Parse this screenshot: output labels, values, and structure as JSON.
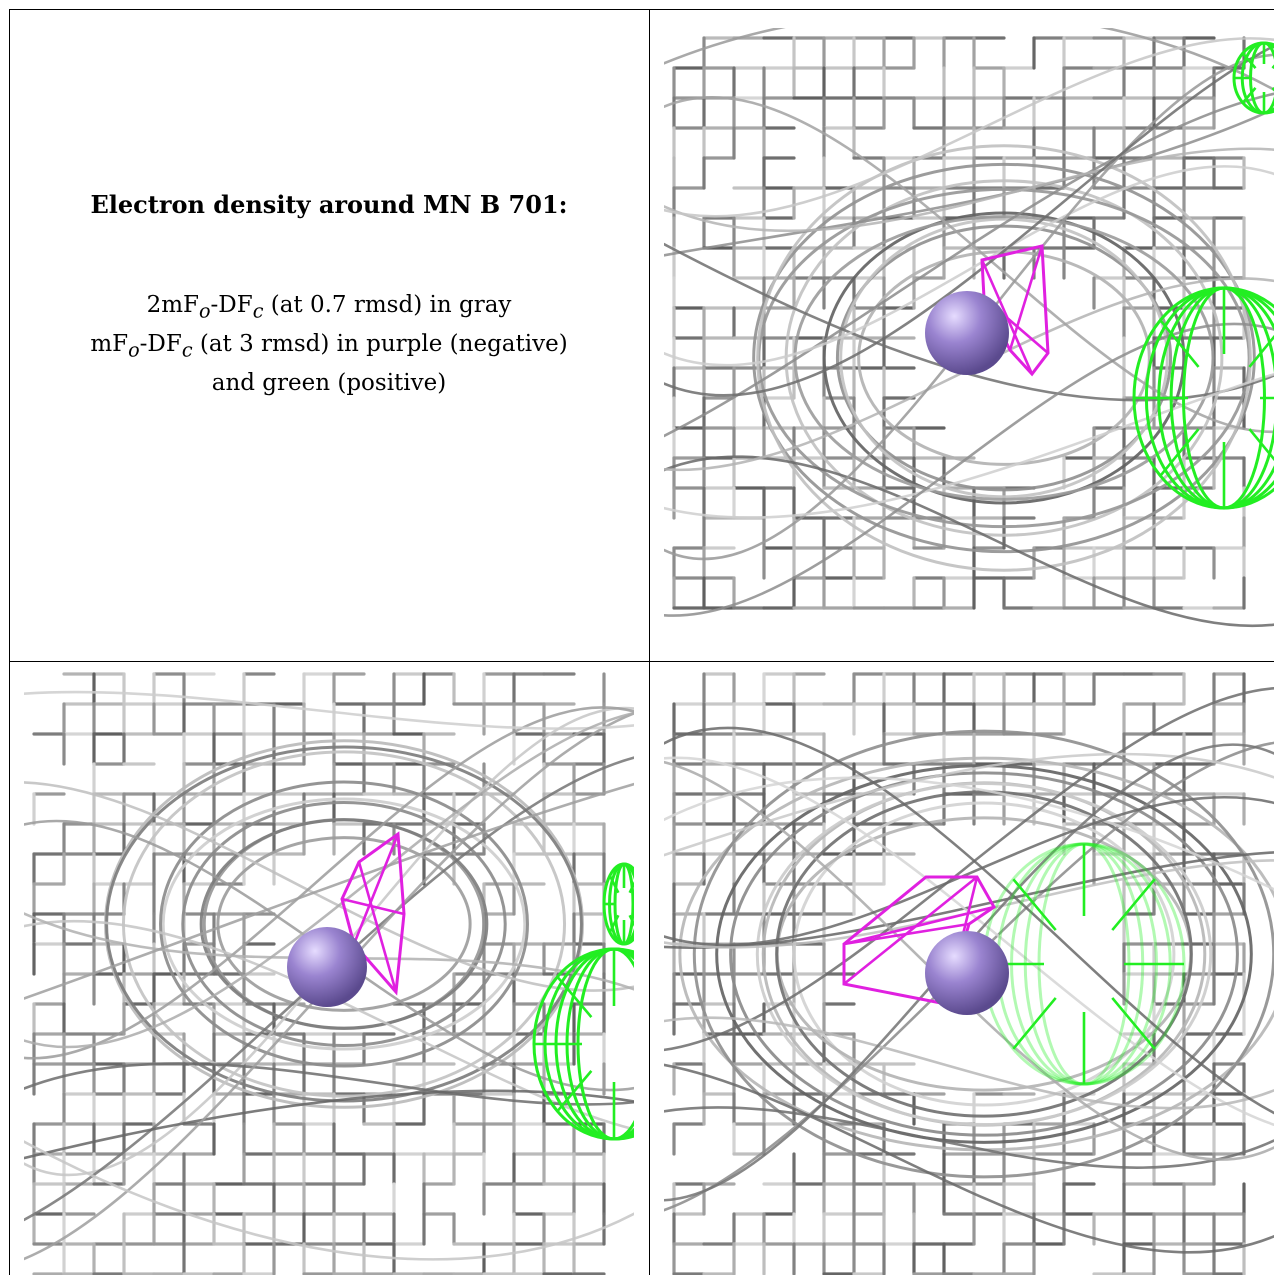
{
  "caption": {
    "title": "Electron density around MN B 701:",
    "line1_prefix": "2mF",
    "line1_sub_o": "o",
    "line1_mid": "-DF",
    "line1_sub_c": "c",
    "line1_suffix": " (at 0.7 rmsd) in gray",
    "line2_prefix": "mF",
    "line2_sub_o": "o",
    "line2_mid": "-DF",
    "line2_sub_c": "c",
    "line2_suffix": " (at 3 rmsd) in purple (negative)",
    "line3": "and green (positive)"
  },
  "colors": {
    "map_2fofc": "#b8b8b8",
    "map_2fofc_dark": "#5a5a5a",
    "map_fofc_negative": "#e020e0",
    "map_fofc_positive": "#22ee22",
    "atom_mn": "#9a84d0"
  },
  "panels": [
    "view-top-right",
    "view-bottom-left",
    "view-bottom-right"
  ]
}
